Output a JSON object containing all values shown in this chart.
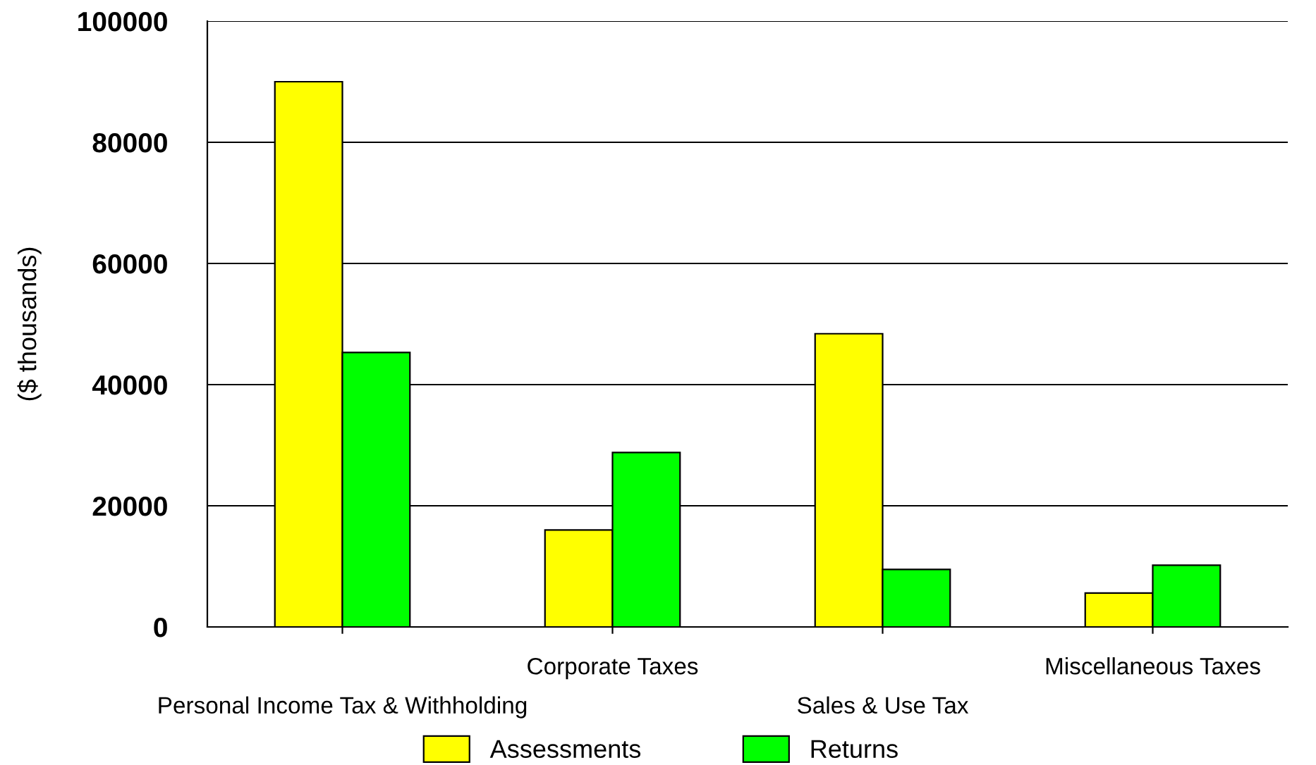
{
  "chart_data": {
    "type": "bar",
    "ylabel": "($ thousands)",
    "categories": [
      "Personal Income Tax & Withholding",
      "Corporate Taxes",
      "Sales & Use Tax",
      "Miscellaneous Taxes"
    ],
    "series": [
      {
        "name": "Assessments",
        "color": "#ffff00",
        "values": [
          90000,
          16000,
          48400,
          5600
        ]
      },
      {
        "name": "Returns",
        "color": "#00ff00",
        "values": [
          45300,
          28800,
          9500,
          10200
        ]
      }
    ],
    "ylim": [
      0,
      100000
    ],
    "yticks": [
      0,
      20000,
      40000,
      60000,
      80000,
      100000
    ],
    "grid": "y",
    "legend": "bottom"
  }
}
